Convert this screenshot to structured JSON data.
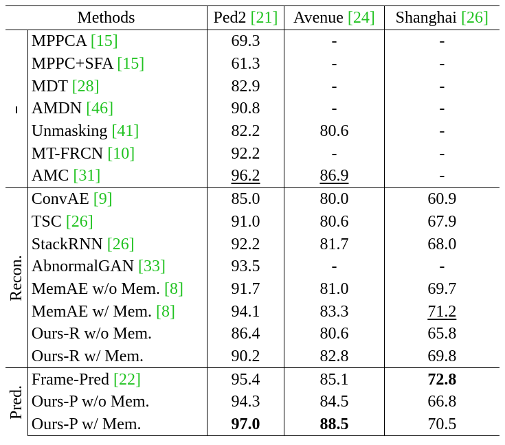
{
  "headers": {
    "methods": "Methods",
    "ped2": "Ped2",
    "ped2_ref": "21",
    "avenue": "Avenue",
    "avenue_ref": "24",
    "shanghai": "Shanghai",
    "shanghai_ref": "26"
  },
  "groups": [
    {
      "label": "",
      "rows": [
        {
          "name": "MPPCA",
          "ref": "15",
          "ped2": "69.3",
          "avenue": "-",
          "shanghai": "-"
        },
        {
          "name": "MPPC+SFA",
          "ref": "15",
          "ped2": "61.3",
          "avenue": "-",
          "shanghai": "-"
        },
        {
          "name": "MDT",
          "ref": "28",
          "ped2": "82.9",
          "avenue": "-",
          "shanghai": "-"
        },
        {
          "name": "AMDN",
          "ref": "46",
          "ped2": "90.8",
          "avenue": "-",
          "shanghai": "-"
        },
        {
          "name": "Unmasking",
          "ref": "41",
          "ped2": "82.2",
          "avenue": "80.6",
          "shanghai": "-"
        },
        {
          "name": "MT-FRCN",
          "ref": "10",
          "ped2": "92.2",
          "avenue": "-",
          "shanghai": "-"
        },
        {
          "name": "AMC",
          "ref": "31",
          "ped2": "96.2",
          "avenue": "86.9",
          "shanghai": "-",
          "underline": [
            "ped2",
            "avenue"
          ]
        }
      ]
    },
    {
      "label": "Recon.",
      "rows": [
        {
          "name": "ConvAE",
          "ref": "9",
          "ped2": "85.0",
          "avenue": "80.0",
          "shanghai": "60.9"
        },
        {
          "name": "TSC",
          "ref": "26",
          "ped2": "91.0",
          "avenue": "80.6",
          "shanghai": "67.9"
        },
        {
          "name": "StackRNN",
          "ref": "26",
          "ped2": "92.2",
          "avenue": "81.7",
          "shanghai": "68.0"
        },
        {
          "name": "AbnormalGAN",
          "ref": "33",
          "ped2": "93.5",
          "avenue": "-",
          "shanghai": "-"
        },
        {
          "name": "MemAE w/o Mem.",
          "ref": "8",
          "ped2": "91.7",
          "avenue": "81.0",
          "shanghai": "69.7"
        },
        {
          "name": "MemAE w/ Mem.",
          "ref": "8",
          "ped2": "94.1",
          "avenue": "83.3",
          "shanghai": "71.2",
          "underline": [
            "shanghai"
          ]
        },
        {
          "name": "Ours-R w/o Mem.",
          "ref": "",
          "ped2": "86.4",
          "avenue": "80.6",
          "shanghai": "65.8"
        },
        {
          "name": "Ours-R w/ Mem.",
          "ref": "",
          "ped2": "90.2",
          "avenue": "82.8",
          "shanghai": "69.8"
        }
      ]
    },
    {
      "label": "Pred.",
      "rows": [
        {
          "name": "Frame-Pred",
          "ref": "22",
          "ped2": "95.4",
          "avenue": "85.1",
          "shanghai": "72.8",
          "bold": [
            "shanghai"
          ]
        },
        {
          "name": "Ours-P w/o Mem.",
          "ref": "",
          "ped2": "94.3",
          "avenue": "84.5",
          "shanghai": "66.8"
        },
        {
          "name": "Ours-P w/ Mem.",
          "ref": "",
          "ped2": "97.0",
          "avenue": "88.5",
          "shanghai": "70.5",
          "bold": [
            "ped2",
            "avenue"
          ]
        }
      ]
    }
  ]
}
